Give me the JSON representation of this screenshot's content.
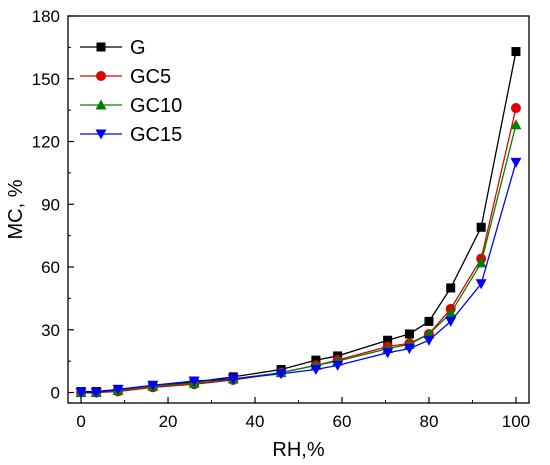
{
  "chart_data": {
    "type": "line",
    "title": "",
    "xlabel": "RH,%",
    "ylabel": "MC, %",
    "xlim": [
      -3,
      103
    ],
    "ylim": [
      -5,
      180
    ],
    "xticks": [
      0,
      20,
      40,
      60,
      80,
      100
    ],
    "yticks": [
      0,
      30,
      60,
      90,
      120,
      150,
      180
    ],
    "grid": false,
    "legend_position": "top-left",
    "x": [
      0,
      3.5,
      8.5,
      16.5,
      26,
      35,
      46,
      54,
      59,
      70.5,
      75.5,
      80,
      85,
      92,
      100
    ],
    "series": [
      {
        "name": "G",
        "color": "#000000",
        "marker": "square",
        "values": [
          0.5,
          0.5,
          1.5,
          3,
          5,
          7.5,
          11,
          15.5,
          17.5,
          25,
          28,
          34,
          50,
          79,
          163
        ]
      },
      {
        "name": "GC5",
        "color": "#e00000",
        "marker": "circle",
        "values": [
          0,
          0,
          0.5,
          2.5,
          4,
          6,
          9.5,
          13,
          15.5,
          22,
          23.5,
          28,
          40,
          64,
          136
        ]
      },
      {
        "name": "GC10",
        "color": "#008000",
        "marker": "triangle-up",
        "values": [
          0,
          0,
          1,
          3,
          4.5,
          6.5,
          9.5,
          13,
          15,
          21,
          23,
          28,
          38,
          62,
          128
        ]
      },
      {
        "name": "GC15",
        "color": "#0000ff",
        "marker": "triangle-down",
        "values": [
          0,
          0,
          1.5,
          3.5,
          5.5,
          6.5,
          9,
          11,
          13,
          19,
          21,
          25,
          34,
          52,
          110
        ]
      }
    ]
  }
}
